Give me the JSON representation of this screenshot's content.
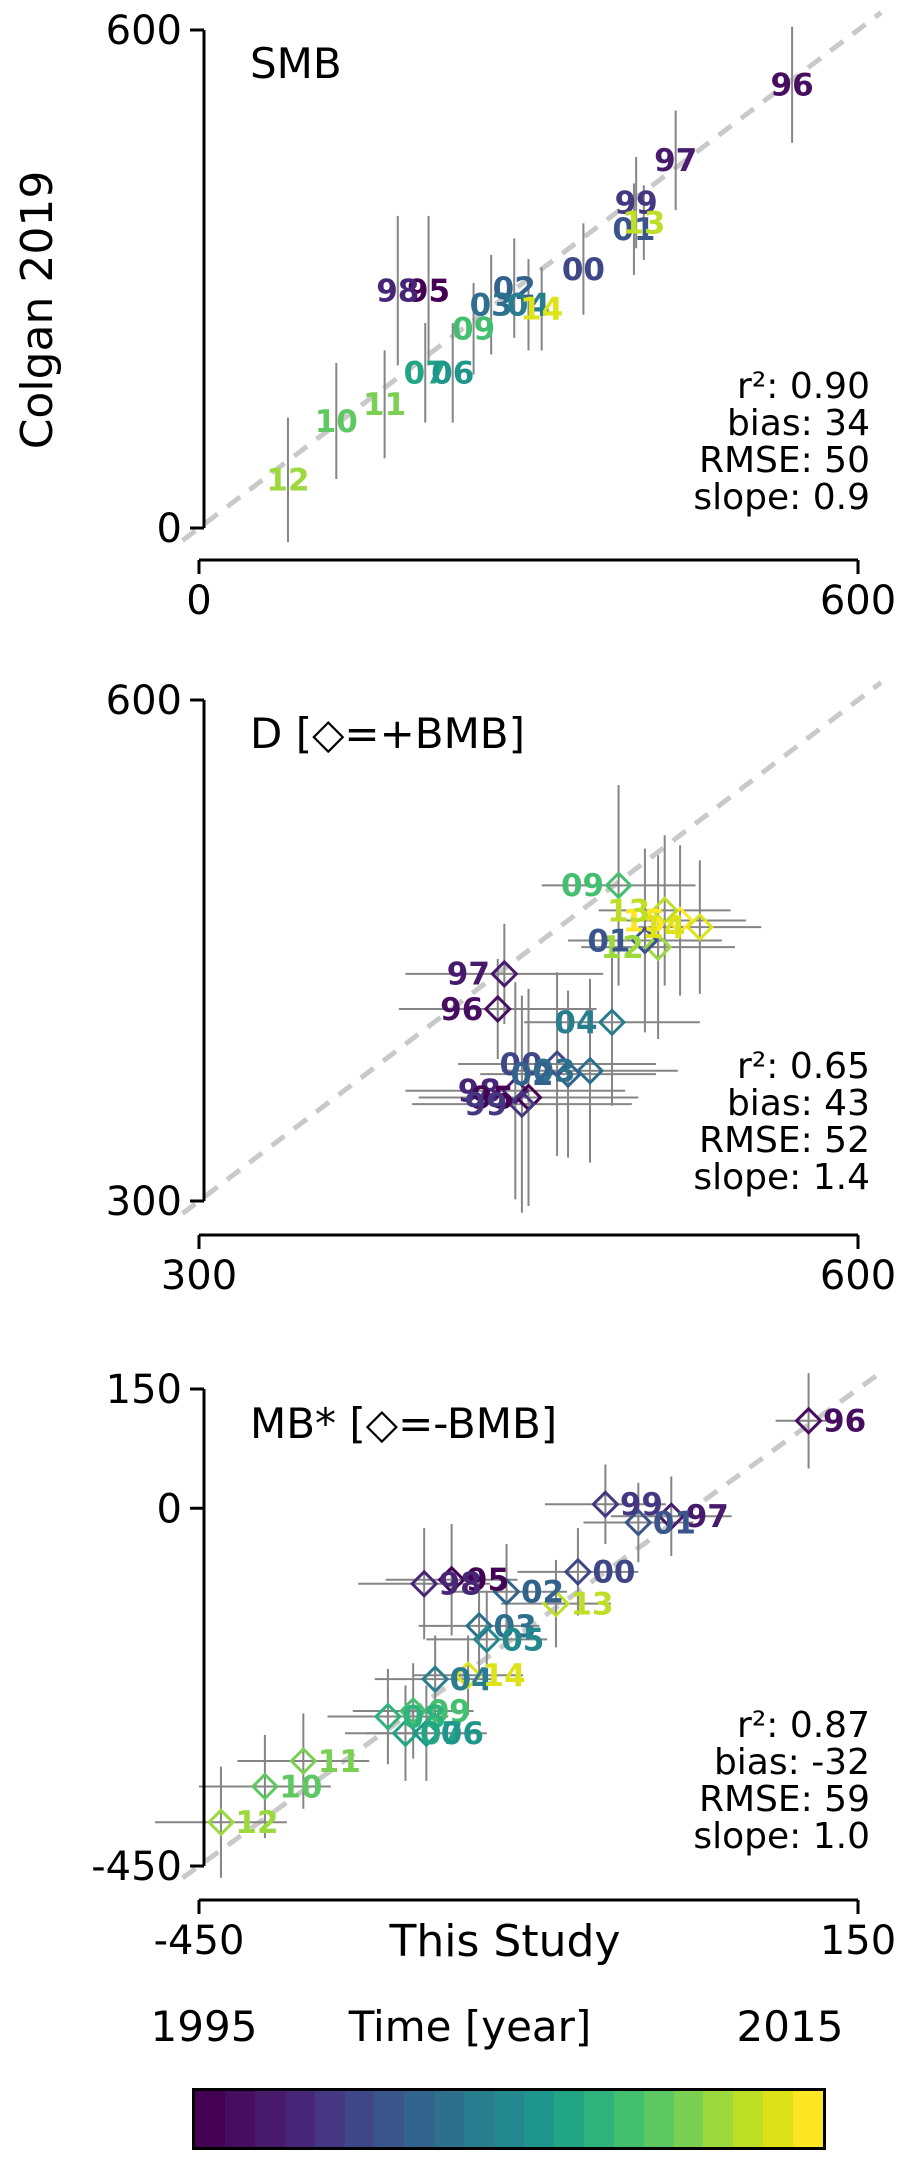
{
  "figure": {
    "background": "#ffffff",
    "identity_line_color": "#c9c9c9",
    "error_bar_color": "#858585",
    "year_colors": {
      "1995": "#440154",
      "1996": "#470d60",
      "1997": "#481a6c",
      "1998": "#482677",
      "1999": "#453781",
      "2000": "#3f4788",
      "2001": "#39558c",
      "2002": "#32638d",
      "2003": "#2d708e",
      "2004": "#287d8e",
      "2005": "#23898e",
      "2006": "#1f968b",
      "2007": "#21a585",
      "2008": "#2eb37c",
      "2009": "#44bf70",
      "2010": "#5ec962",
      "2011": "#7ad151",
      "2012": "#9bd93c",
      "2013": "#bddf26",
      "2014": "#dde318",
      "2015": "#fde725"
    },
    "colorbar": {
      "title": "Time [year]",
      "min_label": "1995",
      "max_label": "2015",
      "min_year": 1995,
      "max_year": 2015
    }
  },
  "chart_data": [
    {
      "type": "scatter",
      "title": "SMB",
      "xlabel": "",
      "ylabel": "Colgan 2019",
      "xlim": [
        0,
        600
      ],
      "ylim": [
        0,
        600
      ],
      "xticks": [
        {
          "value": 0,
          "label": "0"
        },
        {
          "value": 600,
          "label": "600"
        }
      ],
      "yticks": [
        {
          "value": 600,
          "label": "600"
        },
        {
          "value": 0,
          "label": "0"
        }
      ],
      "identity_line": true,
      "marker": "text",
      "label_side": "center",
      "stats": [
        "r²: 0.90",
        "bias: 34",
        "RMSE: 50",
        "slope: 0.9"
      ],
      "points": [
        {
          "label": "96",
          "year": 1996,
          "x": 540,
          "y": 534,
          "xerr": 0,
          "yerr": 70
        },
        {
          "label": "97",
          "year": 1997,
          "x": 434,
          "y": 443,
          "xerr": 0,
          "yerr": 60
        },
        {
          "label": "99",
          "year": 1999,
          "x": 398,
          "y": 392,
          "xerr": 0,
          "yerr": 55
        },
        {
          "label": "01",
          "year": 2001,
          "x": 396,
          "y": 360,
          "xerr": 0,
          "yerr": 55
        },
        {
          "label": "13",
          "year": 2013,
          "x": 405,
          "y": 368,
          "xerr": 0,
          "yerr": 45
        },
        {
          "label": "00",
          "year": 2000,
          "x": 350,
          "y": 312,
          "xerr": 0,
          "yerr": 55
        },
        {
          "label": "95",
          "year": 1995,
          "x": 209,
          "y": 286,
          "xerr": 0,
          "yerr": 90
        },
        {
          "label": "98",
          "year": 1998,
          "x": 181,
          "y": 286,
          "xerr": 0,
          "yerr": 90
        },
        {
          "label": "02",
          "year": 2002,
          "x": 287,
          "y": 289,
          "xerr": 0,
          "yerr": 60
        },
        {
          "label": "03",
          "year": 2003,
          "x": 266,
          "y": 269,
          "xerr": 0,
          "yerr": 60
        },
        {
          "label": "04",
          "year": 2004,
          "x": 300,
          "y": 269,
          "xerr": 0,
          "yerr": 55
        },
        {
          "label": "14",
          "year": 2014,
          "x": 312,
          "y": 264,
          "xerr": 0,
          "yerr": 50
        },
        {
          "label": "09",
          "year": 2009,
          "x": 250,
          "y": 240,
          "xerr": 0,
          "yerr": 55
        },
        {
          "label": "07",
          "year": 2007,
          "x": 206,
          "y": 187,
          "xerr": 0,
          "yerr": 60
        },
        {
          "label": "06",
          "year": 2006,
          "x": 231,
          "y": 187,
          "xerr": 0,
          "yerr": 60
        },
        {
          "label": "11",
          "year": 2011,
          "x": 169,
          "y": 149,
          "xerr": 0,
          "yerr": 65
        },
        {
          "label": "10",
          "year": 2010,
          "x": 125,
          "y": 129,
          "xerr": 0,
          "yerr": 70
        },
        {
          "label": "12",
          "year": 2012,
          "x": 81,
          "y": 58,
          "xerr": 0,
          "yerr": 75
        }
      ]
    },
    {
      "type": "scatter",
      "title": "D [◇=+BMB]",
      "xlabel": "",
      "ylabel": "",
      "xlim": [
        300,
        600
      ],
      "ylim": [
        300,
        600
      ],
      "xticks": [
        {
          "value": 300,
          "label": "300"
        },
        {
          "value": 600,
          "label": "600"
        }
      ],
      "yticks": [
        {
          "value": 600,
          "label": "600"
        },
        {
          "value": 300,
          "label": "300"
        }
      ],
      "identity_line": true,
      "marker": "diamond",
      "label_side": "left",
      "stats": [
        "r²: 0.65",
        "bias: 43",
        "RMSE: 52",
        "slope: 1.4"
      ],
      "points": [
        {
          "label": "97",
          "year": 1997,
          "x": 439,
          "y": 436,
          "xerr": 45,
          "yerr": 30
        },
        {
          "label": "96",
          "year": 1996,
          "x": 436,
          "y": 415,
          "xerr": 45,
          "yerr": 30
        },
        {
          "label": "09",
          "year": 2009,
          "x": 491,
          "y": 489,
          "xerr": 35,
          "yerr": 60
        },
        {
          "label": "15",
          "year": 2015,
          "x": 519,
          "y": 468,
          "xerr": 30,
          "yerr": 45
        },
        {
          "label": "14",
          "year": 2014,
          "x": 528,
          "y": 464,
          "xerr": 28,
          "yerr": 40
        },
        {
          "label": "13",
          "year": 2013,
          "x": 512,
          "y": 474,
          "xerr": 30,
          "yerr": 45
        },
        {
          "label": "12",
          "year": 2012,
          "x": 509,
          "y": 452,
          "xerr": 35,
          "yerr": 55
        },
        {
          "label": "01",
          "year": 2001,
          "x": 503,
          "y": 456,
          "xerr": 35,
          "yerr": 55
        },
        {
          "label": "04",
          "year": 2004,
          "x": 488,
          "y": 407,
          "xerr": 40,
          "yerr": 50
        },
        {
          "label": "00",
          "year": 2000,
          "x": 463,
          "y": 382,
          "xerr": 45,
          "yerr": 55
        },
        {
          "label": "03",
          "year": 2003,
          "x": 478,
          "y": 378,
          "xerr": 40,
          "yerr": 55
        },
        {
          "label": "02",
          "year": 2002,
          "x": 468,
          "y": 376,
          "xerr": 40,
          "yerr": 50
        },
        {
          "label": "98",
          "year": 1998,
          "x": 444,
          "y": 366,
          "xerr": 50,
          "yerr": 65
        },
        {
          "label": "95",
          "year": 1995,
          "x": 450,
          "y": 362,
          "xerr": 50,
          "yerr": 65
        },
        {
          "label": "99",
          "year": 1999,
          "x": 447,
          "y": 358,
          "xerr": 50,
          "yerr": 65
        }
      ]
    },
    {
      "type": "scatter",
      "title": "MB* [◇=-BMB]",
      "xlabel": "This Study",
      "ylabel": "",
      "xlim": [
        -450,
        150
      ],
      "ylim": [
        -450,
        150
      ],
      "xticks": [
        {
          "value": -450,
          "label": "-450"
        },
        {
          "value": 150,
          "label": "150"
        }
      ],
      "yticks": [
        {
          "value": 150,
          "label": "150"
        },
        {
          "value": 0,
          "label": "0"
        },
        {
          "value": -450,
          "label": "-450"
        }
      ],
      "identity_line": true,
      "marker": "diamond",
      "label_side": "right",
      "stats": [
        "r²: 0.87",
        "bias: -32",
        "RMSE: 59",
        "slope: 1.0"
      ],
      "points": [
        {
          "label": "96",
          "year": 1996,
          "x": 105,
          "y": 110,
          "xerr": 30,
          "yerr": 60
        },
        {
          "label": "99",
          "year": 1999,
          "x": -80,
          "y": 5,
          "xerr": 55,
          "yerr": 50
        },
        {
          "label": "97",
          "year": 1997,
          "x": -20,
          "y": -10,
          "xerr": 55,
          "yerr": 50
        },
        {
          "label": "01",
          "year": 2001,
          "x": -50,
          "y": -18,
          "xerr": 50,
          "yerr": 50
        },
        {
          "label": "00",
          "year": 2000,
          "x": -105,
          "y": -80,
          "xerr": 55,
          "yerr": 55
        },
        {
          "label": "95",
          "year": 1995,
          "x": -220,
          "y": -90,
          "xerr": 60,
          "yerr": 70
        },
        {
          "label": "98",
          "year": 1998,
          "x": -245,
          "y": -95,
          "xerr": 60,
          "yerr": 70
        },
        {
          "label": "02",
          "year": 2002,
          "x": -170,
          "y": -105,
          "xerr": 55,
          "yerr": 60
        },
        {
          "label": "13",
          "year": 2013,
          "x": -125,
          "y": -120,
          "xerr": 50,
          "yerr": 55
        },
        {
          "label": "03",
          "year": 2003,
          "x": -195,
          "y": -148,
          "xerr": 55,
          "yerr": 60
        },
        {
          "label": "05",
          "year": 2005,
          "x": -188,
          "y": -165,
          "xerr": 55,
          "yerr": 60
        },
        {
          "label": "04",
          "year": 2004,
          "x": -235,
          "y": -215,
          "xerr": 55,
          "yerr": 55
        },
        {
          "label": "14",
          "year": 2014,
          "x": -205,
          "y": -210,
          "xerr": 50,
          "yerr": 50
        },
        {
          "label": "09",
          "year": 2009,
          "x": -255,
          "y": -255,
          "xerr": 55,
          "yerr": 60
        },
        {
          "label": "08",
          "year": 2008,
          "x": -278,
          "y": -262,
          "xerr": 55,
          "yerr": 60
        },
        {
          "label": "07",
          "year": 2007,
          "x": -262,
          "y": -283,
          "xerr": 55,
          "yerr": 60
        },
        {
          "label": "06",
          "year": 2006,
          "x": -243,
          "y": -283,
          "xerr": 55,
          "yerr": 60
        },
        {
          "label": "11",
          "year": 2011,
          "x": -355,
          "y": -318,
          "xerr": 60,
          "yerr": 60
        },
        {
          "label": "10",
          "year": 2010,
          "x": -390,
          "y": -350,
          "xerr": 60,
          "yerr": 65
        },
        {
          "label": "12",
          "year": 2012,
          "x": -430,
          "y": -395,
          "xerr": 60,
          "yerr": 70
        }
      ]
    }
  ]
}
